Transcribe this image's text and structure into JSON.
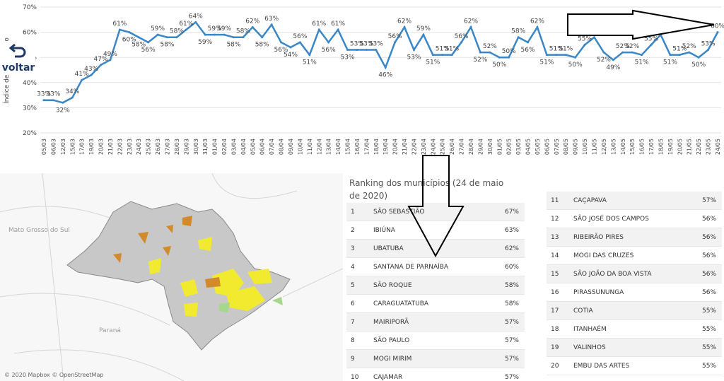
{
  "chart_data": {
    "type": "line",
    "y_label": "Índice de isolamento",
    "categories": [
      "05/03",
      "06/03",
      "12/03",
      "15/03",
      "17/03",
      "19/03",
      "20/03",
      "21/03",
      "22/03",
      "23/03",
      "24/03",
      "25/03",
      "26/03",
      "27/03",
      "28/03",
      "29/03",
      "30/03",
      "31/03",
      "01/04",
      "02/04",
      "03/04",
      "04/04",
      "05/04",
      "06/04",
      "07/04",
      "08/04",
      "09/04",
      "10/04",
      "11/04",
      "12/04",
      "13/04",
      "14/04",
      "15/04",
      "16/04",
      "17/04",
      "18/04",
      "19/04",
      "20/04",
      "21/04",
      "22/04",
      "23/04",
      "24/04",
      "25/04",
      "26/04",
      "27/04",
      "28/04",
      "29/04",
      "30/04",
      "01/05",
      "02/05",
      "03/05",
      "04/05",
      "05/05",
      "06/05",
      "07/05",
      "08/05",
      "09/05",
      "10/05",
      "11/05",
      "12/05",
      "13/05",
      "14/05",
      "15/05",
      "16/05",
      "17/05",
      "18/05",
      "19/05",
      "20/05",
      "21/05",
      "22/05",
      "23/05",
      "24/05"
    ],
    "values": [
      33,
      33,
      32,
      34,
      41,
      43,
      47,
      49,
      61,
      60,
      58,
      56,
      59,
      58,
      58,
      61,
      64,
      59,
      59,
      59,
      58,
      58,
      62,
      58,
      63,
      56,
      54,
      56,
      51,
      61,
      56,
      61,
      53,
      53,
      53,
      53,
      46,
      56,
      62,
      53,
      59,
      51,
      51,
      51,
      56,
      62,
      52,
      52,
      50,
      50,
      58,
      56,
      62,
      51,
      51,
      51,
      50,
      55,
      58,
      52,
      49,
      52,
      52,
      51,
      55,
      59,
      51,
      51,
      52,
      50,
      53,
      60
    ],
    "value_labels": [
      "33%",
      "33%",
      "32%",
      "34%",
      "41%",
      "43%",
      "47%",
      "49%",
      "61%",
      "60%",
      "58%",
      "56%",
      "59%",
      "58%",
      "58%",
      "61%",
      "64%",
      "59%",
      "59%",
      "59%",
      "58%",
      "58%",
      "62%",
      "58%",
      "63%",
      "56%",
      "54%",
      "56%",
      "51%",
      "61%",
      "56%",
      "61%",
      "53%",
      "53%",
      "53%",
      "53%",
      "46%",
      "56%",
      "62%",
      "53%",
      "59%",
      "51%",
      "51%",
      "51%",
      "56%",
      "62%",
      "52%",
      "52%",
      "50%",
      "50%",
      "58%",
      "56%",
      "62%",
      "51%",
      "51%",
      "51%",
      "50%",
      "55%",
      "58%",
      "52%",
      "49%",
      "52%",
      "52%",
      "51%",
      "55%",
      "59%",
      "51%",
      "51%",
      "52%",
      "50%",
      "53%",
      "60%"
    ],
    "color": "#3a87c8",
    "ylim": [
      20,
      70
    ],
    "yticks": [
      {
        "value": 20,
        "label": "20%"
      },
      {
        "value": 30,
        "label": "30%"
      },
      {
        "value": 40,
        "label": "40%"
      },
      {
        "value": 50,
        "label": "50%"
      },
      {
        "value": 60,
        "label": "60%"
      },
      {
        "value": 70,
        "label": "70%"
      }
    ],
    "grid": true
  },
  "back_button": "voltar",
  "map": {
    "labels": [
      "Mato Grosso do Sul",
      "Paraná"
    ],
    "attribution": "© 2020 Mapbox © OpenStreetMap"
  },
  "ranking": {
    "title": "Ranking dos municípios (24 de maio de 2020)",
    "rows": [
      [
        "1",
        "SÃO SEBASTIÃO",
        "67%"
      ],
      [
        "2",
        "IBIÚNA",
        "63%"
      ],
      [
        "3",
        "UBATUBA",
        "62%"
      ],
      [
        "4",
        "SANTANA DE PARNAÍBA",
        "60%"
      ],
      [
        "5",
        "SÃO ROQUE",
        "58%"
      ],
      [
        "6",
        "CARAGUATATUBA",
        "58%"
      ],
      [
        "7",
        "MAIRIPORÃ",
        "57%"
      ],
      [
        "8",
        "SÃO PAULO",
        "57%"
      ],
      [
        "9",
        "MOGI MIRIM",
        "57%"
      ],
      [
        "10",
        "CAJAMAR",
        "57%"
      ],
      [
        "11",
        "CAÇAPAVA",
        "57%"
      ],
      [
        "12",
        "SÃO JOSÉ DOS CAMPOS",
        "56%"
      ],
      [
        "13",
        "RIBEIRÃO PIRES",
        "56%"
      ],
      [
        "14",
        "MOGI DAS CRUZES",
        "56%"
      ],
      [
        "15",
        "SÃO JOÃO DA BOA VISTA",
        "56%"
      ],
      [
        "16",
        "PIRASSUNUNGA",
        "56%"
      ],
      [
        "17",
        "COTIA",
        "55%"
      ],
      [
        "18",
        "ITANHAÉM",
        "55%"
      ],
      [
        "19",
        "VALINHOS",
        "55%"
      ],
      [
        "20",
        "EMBU DAS ARTES",
        "55%"
      ]
    ]
  }
}
